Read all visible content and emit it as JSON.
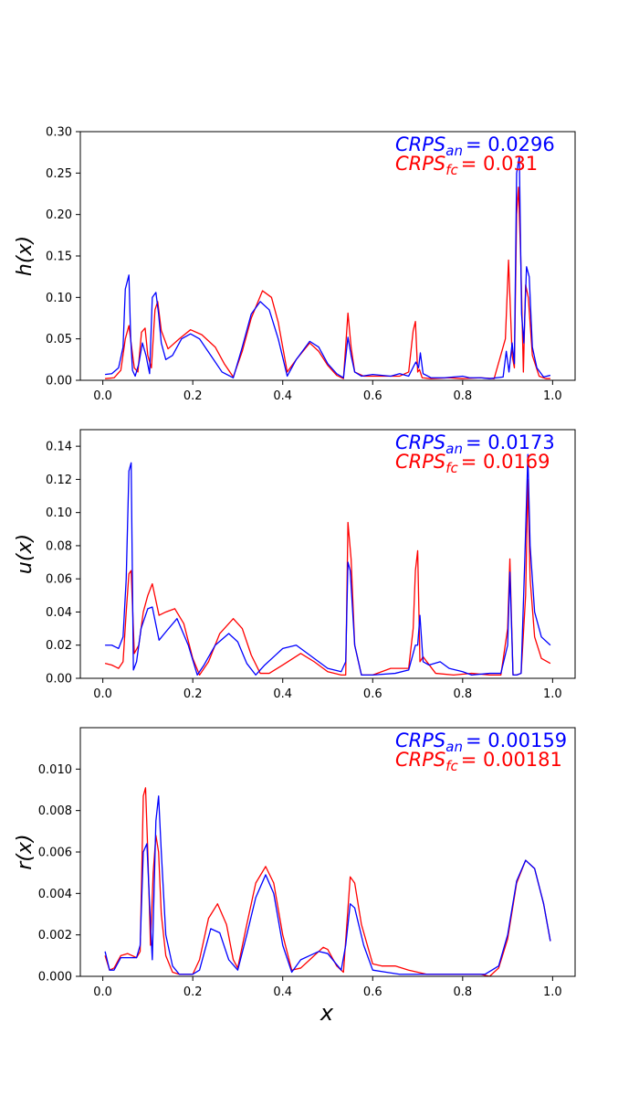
{
  "figure": {
    "xlabel": "x",
    "colors": {
      "an": "#0000ff",
      "fc": "#ff0000"
    }
  },
  "chart_data": [
    {
      "type": "line",
      "ylabel": "h(x)",
      "xlim": [
        -0.05,
        1.05
      ],
      "ylim": [
        0,
        0.3
      ],
      "xticks": [
        "0.0",
        "0.2",
        "0.4",
        "0.6",
        "0.8",
        "1.0"
      ],
      "xtick_values": [
        0,
        0.2,
        0.4,
        0.6,
        0.8,
        1.0
      ],
      "yticks": [
        "0.00",
        "0.05",
        "0.10",
        "0.15",
        "0.20",
        "0.25",
        "0.30"
      ],
      "ytick_values": [
        0,
        0.05,
        0.1,
        0.15,
        0.2,
        0.25,
        0.3
      ],
      "annotations": [
        {
          "symbol": "CRPS",
          "sub": "an",
          "eq": "= 0.0296",
          "color": "#0000ff"
        },
        {
          "symbol": "CRPS",
          "sub": "fc",
          "eq": "= 0.031",
          "color": "#ff0000"
        }
      ],
      "series": [
        {
          "color": "#0000ff",
          "x": [
            0.005,
            0.02,
            0.035,
            0.045,
            0.05,
            0.058,
            0.062,
            0.066,
            0.072,
            0.08,
            0.088,
            0.096,
            0.104,
            0.11,
            0.118,
            0.124,
            0.13,
            0.14,
            0.155,
            0.175,
            0.195,
            0.215,
            0.24,
            0.265,
            0.29,
            0.31,
            0.33,
            0.35,
            0.37,
            0.39,
            0.41,
            0.43,
            0.46,
            0.48,
            0.5,
            0.52,
            0.535,
            0.545,
            0.552,
            0.56,
            0.575,
            0.6,
            0.64,
            0.66,
            0.68,
            0.692,
            0.696,
            0.702,
            0.706,
            0.712,
            0.73,
            0.76,
            0.8,
            0.815,
            0.84,
            0.86,
            0.89,
            0.897,
            0.903,
            0.91,
            0.915,
            0.92,
            0.926,
            0.931,
            0.936,
            0.942,
            0.948,
            0.955,
            0.965,
            0.98,
            0.995
          ],
          "y": [
            0.007,
            0.008,
            0.015,
            0.04,
            0.11,
            0.127,
            0.05,
            0.012,
            0.005,
            0.02,
            0.045,
            0.03,
            0.008,
            0.1,
            0.106,
            0.08,
            0.045,
            0.025,
            0.03,
            0.05,
            0.056,
            0.05,
            0.03,
            0.01,
            0.003,
            0.04,
            0.08,
            0.095,
            0.085,
            0.05,
            0.005,
            0.025,
            0.047,
            0.04,
            0.02,
            0.008,
            0.003,
            0.052,
            0.03,
            0.01,
            0.005,
            0.007,
            0.005,
            0.008,
            0.005,
            0.018,
            0.022,
            0.015,
            0.033,
            0.008,
            0.003,
            0.003,
            0.005,
            0.003,
            0.003,
            0.002,
            0.004,
            0.035,
            0.01,
            0.045,
            0.02,
            0.25,
            0.27,
            0.08,
            0.045,
            0.137,
            0.125,
            0.04,
            0.015,
            0.004,
            0.006
          ]
        },
        {
          "color": "#ff0000",
          "x": [
            0.005,
            0.025,
            0.04,
            0.05,
            0.058,
            0.064,
            0.07,
            0.078,
            0.086,
            0.094,
            0.1,
            0.108,
            0.116,
            0.122,
            0.13,
            0.145,
            0.17,
            0.195,
            0.22,
            0.25,
            0.27,
            0.29,
            0.31,
            0.33,
            0.355,
            0.375,
            0.39,
            0.41,
            0.43,
            0.46,
            0.48,
            0.5,
            0.52,
            0.535,
            0.545,
            0.552,
            0.56,
            0.58,
            0.62,
            0.66,
            0.68,
            0.69,
            0.695,
            0.7,
            0.704,
            0.71,
            0.73,
            0.77,
            0.8,
            0.84,
            0.87,
            0.895,
            0.902,
            0.91,
            0.915,
            0.92,
            0.924,
            0.929,
            0.935,
            0.94,
            0.946,
            0.955,
            0.97,
            0.985,
            0.995
          ],
          "y": [
            0.002,
            0.003,
            0.012,
            0.05,
            0.066,
            0.04,
            0.015,
            0.01,
            0.058,
            0.063,
            0.03,
            0.015,
            0.085,
            0.095,
            0.06,
            0.038,
            0.05,
            0.061,
            0.055,
            0.04,
            0.02,
            0.004,
            0.035,
            0.075,
            0.108,
            0.1,
            0.07,
            0.01,
            0.025,
            0.045,
            0.035,
            0.018,
            0.006,
            0.002,
            0.081,
            0.04,
            0.01,
            0.005,
            0.005,
            0.005,
            0.01,
            0.06,
            0.071,
            0.01,
            0.013,
            0.003,
            0.002,
            0.003,
            0.002,
            0.003,
            0.002,
            0.05,
            0.145,
            0.03,
            0.015,
            0.2,
            0.233,
            0.15,
            0.01,
            0.115,
            0.1,
            0.03,
            0.005,
            0.002,
            0.002
          ]
        }
      ]
    },
    {
      "type": "line",
      "ylabel": "u(x)",
      "xlim": [
        -0.05,
        1.05
      ],
      "ylim": [
        0,
        0.15
      ],
      "xticks": [
        "0.0",
        "0.2",
        "0.4",
        "0.6",
        "0.8",
        "1.0"
      ],
      "xtick_values": [
        0,
        0.2,
        0.4,
        0.6,
        0.8,
        1.0
      ],
      "yticks": [
        "0.00",
        "0.02",
        "0.04",
        "0.06",
        "0.08",
        "0.10",
        "0.12",
        "0.14"
      ],
      "ytick_values": [
        0,
        0.02,
        0.04,
        0.06,
        0.08,
        0.1,
        0.12,
        0.14
      ],
      "annotations": [
        {
          "symbol": "CRPS",
          "sub": "an",
          "eq": "= 0.0173",
          "color": "#0000ff"
        },
        {
          "symbol": "CRPS",
          "sub": "fc",
          "eq": "= 0.0169",
          "color": "#ff0000"
        }
      ],
      "series": [
        {
          "color": "#0000ff",
          "x": [
            0.005,
            0.02,
            0.035,
            0.045,
            0.052,
            0.058,
            0.063,
            0.068,
            0.075,
            0.085,
            0.1,
            0.11,
            0.125,
            0.14,
            0.165,
            0.19,
            0.21,
            0.225,
            0.25,
            0.28,
            0.3,
            0.32,
            0.34,
            0.36,
            0.38,
            0.4,
            0.43,
            0.45,
            0.48,
            0.5,
            0.53,
            0.54,
            0.545,
            0.55,
            0.56,
            0.575,
            0.6,
            0.65,
            0.68,
            0.695,
            0.7,
            0.705,
            0.712,
            0.725,
            0.75,
            0.77,
            0.8,
            0.82,
            0.86,
            0.885,
            0.9,
            0.905,
            0.912,
            0.92,
            0.93,
            0.938,
            0.945,
            0.95,
            0.96,
            0.975,
            0.995
          ],
          "y": [
            0.02,
            0.02,
            0.018,
            0.025,
            0.06,
            0.125,
            0.13,
            0.005,
            0.01,
            0.03,
            0.042,
            0.043,
            0.023,
            0.028,
            0.036,
            0.02,
            0.002,
            0.008,
            0.02,
            0.027,
            0.022,
            0.009,
            0.002,
            0.008,
            0.013,
            0.018,
            0.02,
            0.016,
            0.01,
            0.006,
            0.004,
            0.01,
            0.07,
            0.065,
            0.02,
            0.002,
            0.002,
            0.003,
            0.005,
            0.02,
            0.02,
            0.038,
            0.01,
            0.008,
            0.01,
            0.006,
            0.004,
            0.002,
            0.003,
            0.003,
            0.02,
            0.064,
            0.002,
            0.002,
            0.003,
            0.07,
            0.135,
            0.08,
            0.04,
            0.025,
            0.02
          ]
        },
        {
          "color": "#ff0000",
          "x": [
            0.005,
            0.02,
            0.035,
            0.045,
            0.052,
            0.058,
            0.063,
            0.07,
            0.08,
            0.09,
            0.1,
            0.11,
            0.125,
            0.14,
            0.16,
            0.18,
            0.2,
            0.215,
            0.235,
            0.26,
            0.29,
            0.31,
            0.33,
            0.35,
            0.37,
            0.4,
            0.44,
            0.47,
            0.5,
            0.53,
            0.54,
            0.545,
            0.552,
            0.56,
            0.575,
            0.6,
            0.64,
            0.68,
            0.69,
            0.695,
            0.7,
            0.705,
            0.712,
            0.74,
            0.78,
            0.82,
            0.86,
            0.885,
            0.9,
            0.905,
            0.912,
            0.92,
            0.93,
            0.94,
            0.945,
            0.95,
            0.96,
            0.975,
            0.995
          ],
          "y": [
            0.009,
            0.008,
            0.006,
            0.01,
            0.04,
            0.063,
            0.065,
            0.015,
            0.02,
            0.04,
            0.05,
            0.057,
            0.038,
            0.04,
            0.042,
            0.033,
            0.012,
            0.002,
            0.01,
            0.027,
            0.036,
            0.03,
            0.014,
            0.003,
            0.003,
            0.008,
            0.015,
            0.01,
            0.004,
            0.002,
            0.002,
            0.094,
            0.072,
            0.02,
            0.002,
            0.002,
            0.006,
            0.006,
            0.03,
            0.065,
            0.077,
            0.01,
            0.013,
            0.003,
            0.002,
            0.003,
            0.002,
            0.002,
            0.03,
            0.072,
            0.002,
            0.002,
            0.003,
            0.05,
            0.12,
            0.06,
            0.025,
            0.012,
            0.009
          ]
        }
      ]
    },
    {
      "type": "line",
      "ylabel": "r(x)",
      "xlim": [
        -0.05,
        1.05
      ],
      "ylim": [
        0,
        0.012
      ],
      "xticks": [
        "0.0",
        "0.2",
        "0.4",
        "0.6",
        "0.8",
        "1.0"
      ],
      "xtick_values": [
        0,
        0.2,
        0.4,
        0.6,
        0.8,
        1.0
      ],
      "yticks": [
        "0.000",
        "0.002",
        "0.004",
        "0.006",
        "0.008",
        "0.010"
      ],
      "ytick_values": [
        0,
        0.002,
        0.004,
        0.006,
        0.008,
        0.01
      ],
      "annotations": [
        {
          "symbol": "CRPS",
          "sub": "an",
          "eq": "= 0.00159",
          "color": "#0000ff"
        },
        {
          "symbol": "CRPS",
          "sub": "fc",
          "eq": "= 0.00181",
          "color": "#ff0000"
        }
      ],
      "series": [
        {
          "color": "#0000ff",
          "x": [
            0.005,
            0.015,
            0.025,
            0.04,
            0.055,
            0.075,
            0.083,
            0.09,
            0.098,
            0.104,
            0.11,
            0.118,
            0.124,
            0.13,
            0.14,
            0.155,
            0.17,
            0.185,
            0.2,
            0.215,
            0.24,
            0.26,
            0.28,
            0.3,
            0.32,
            0.34,
            0.362,
            0.38,
            0.4,
            0.42,
            0.44,
            0.46,
            0.48,
            0.5,
            0.53,
            0.54,
            0.55,
            0.56,
            0.58,
            0.6,
            0.63,
            0.66,
            0.7,
            0.75,
            0.8,
            0.85,
            0.88,
            0.9,
            0.92,
            0.94,
            0.96,
            0.98,
            0.995
          ],
          "y": [
            0.0012,
            0.0003,
            0.0003,
            0.0009,
            0.0009,
            0.0009,
            0.0015,
            0.006,
            0.0064,
            0.0035,
            0.0008,
            0.0075,
            0.0087,
            0.006,
            0.002,
            0.0005,
            0.0001,
            0.0001,
            0.0001,
            0.0003,
            0.0023,
            0.0021,
            0.0008,
            0.0003,
            0.002,
            0.0038,
            0.0049,
            0.004,
            0.0015,
            0.0002,
            0.0008,
            0.001,
            0.0012,
            0.0011,
            0.0003,
            0.0015,
            0.0035,
            0.0033,
            0.0015,
            0.0003,
            0.0002,
            0.0001,
            0.0001,
            0.0001,
            0.0001,
            0.0001,
            0.0005,
            0.002,
            0.0046,
            0.0056,
            0.0052,
            0.0035,
            0.0017
          ]
        },
        {
          "color": "#ff0000",
          "x": [
            0.005,
            0.015,
            0.025,
            0.04,
            0.055,
            0.075,
            0.083,
            0.09,
            0.095,
            0.1,
            0.106,
            0.112,
            0.118,
            0.124,
            0.13,
            0.14,
            0.155,
            0.17,
            0.185,
            0.2,
            0.215,
            0.235,
            0.255,
            0.275,
            0.29,
            0.3,
            0.32,
            0.34,
            0.362,
            0.38,
            0.4,
            0.42,
            0.44,
            0.46,
            0.48,
            0.49,
            0.5,
            0.52,
            0.535,
            0.55,
            0.56,
            0.575,
            0.6,
            0.62,
            0.65,
            0.68,
            0.72,
            0.8,
            0.84,
            0.86,
            0.88,
            0.9,
            0.92,
            0.94,
            0.96,
            0.98,
            0.995
          ],
          "y": [
            0.001,
            0.0003,
            0.0004,
            0.001,
            0.0011,
            0.0009,
            0.0012,
            0.0087,
            0.0091,
            0.006,
            0.0015,
            0.005,
            0.0068,
            0.006,
            0.003,
            0.001,
            0.0002,
            0.0001,
            0.0001,
            0.0001,
            0.0008,
            0.0028,
            0.0035,
            0.0025,
            0.0008,
            0.0004,
            0.0025,
            0.0045,
            0.0053,
            0.0045,
            0.002,
            0.0003,
            0.0004,
            0.0008,
            0.0012,
            0.0014,
            0.0013,
            0.0005,
            0.0002,
            0.0048,
            0.0045,
            0.0025,
            0.0006,
            0.0005,
            0.0005,
            0.0003,
            0.0001,
            0.0001,
            0.0001,
            0.0,
            0.0004,
            0.0018,
            0.0045,
            0.0056,
            0.0052,
            0.0035,
            0.0017
          ]
        }
      ]
    }
  ]
}
